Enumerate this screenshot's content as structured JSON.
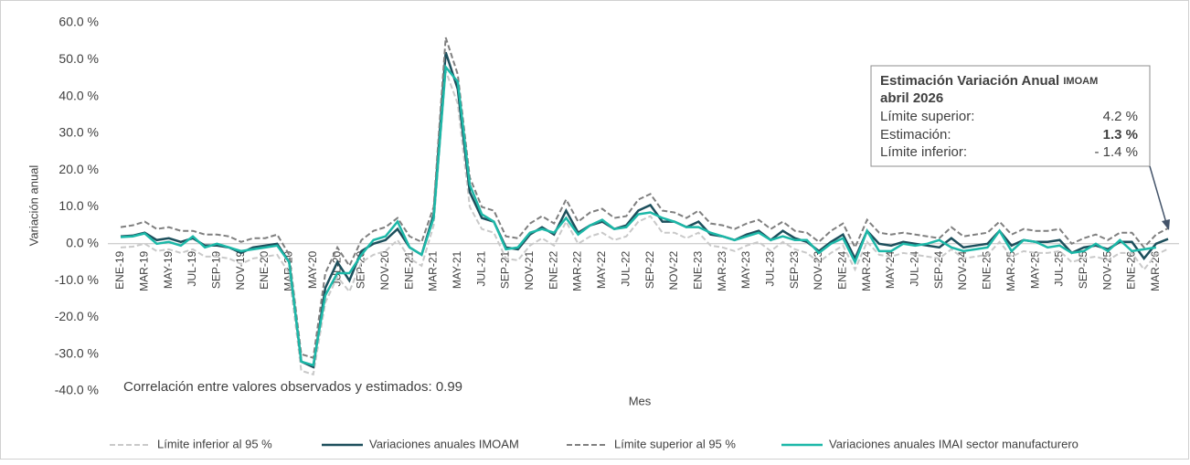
{
  "chart_data": {
    "type": "line",
    "y_label": "Variación anual",
    "x_label": "Mes",
    "ylim": [
      -40,
      60
    ],
    "yticks": [
      {
        "value": -40,
        "label": "-40.0 %"
      },
      {
        "value": -30,
        "label": "-30.0 %"
      },
      {
        "value": -20,
        "label": "-20.0 %"
      },
      {
        "value": -10,
        "label": "-10.0 %"
      },
      {
        "value": 0,
        "label": "0.0 %"
      },
      {
        "value": 10,
        "label": "10.0 %"
      },
      {
        "value": 20,
        "label": "20.0 %"
      },
      {
        "value": 30,
        "label": "30.0 %"
      },
      {
        "value": 40,
        "label": "40.0 %"
      },
      {
        "value": 50,
        "label": "50.0 %"
      },
      {
        "value": 60,
        "label": "60.0 %"
      }
    ],
    "categories": [
      "ENE-19",
      null,
      "MAR-19",
      null,
      "MAY-19",
      null,
      "JUL-19",
      null,
      "SEP-19",
      null,
      "NOV-19",
      null,
      "ENE-20",
      null,
      "MAR-20",
      null,
      "MAY-20",
      null,
      "JUL-20",
      null,
      "SEP-20",
      null,
      "NOV-20",
      null,
      "ENE-21",
      null,
      "MAR-21",
      null,
      "MAY-21",
      null,
      "JUL-21",
      null,
      "SEP-21",
      null,
      "NOV-21",
      null,
      "ENE-22",
      null,
      "MAR-22",
      null,
      "MAY-22",
      null,
      "JUL-22",
      null,
      "SEP-22",
      null,
      "NOV-22",
      null,
      "ENE-23",
      null,
      "MAR-23",
      null,
      "MAY-23",
      null,
      "JUL-23",
      null,
      "SEP-23",
      null,
      "NOV-23",
      null,
      "ENE-24",
      null,
      "MAR-24",
      null,
      "MAY-24",
      null,
      "JUL-24",
      null,
      "SEP-24",
      null,
      "NOV-24",
      null,
      "ENE-25",
      null,
      "MAR-25",
      null,
      "MAY-25",
      null,
      "JUL-25",
      null,
      "SEP-25",
      null,
      "NOV-25",
      null,
      "ENE-26",
      null,
      "MAR-26",
      null
    ],
    "series": [
      {
        "name": "Límite inferior al 95 %",
        "color": "#c9c9c9",
        "dashed": true,
        "values": [
          -1,
          -0.8,
          0,
          -2,
          -1.5,
          -2.5,
          -1.5,
          -3.5,
          -3.5,
          -4,
          -5.5,
          -4,
          -3.5,
          -3,
          -8,
          -34.5,
          -35.5,
          -16,
          -9,
          -13,
          -5,
          -3,
          -2,
          1,
          -4,
          -6,
          5,
          47,
          38,
          10,
          4,
          3,
          -4,
          -4.5,
          -0.5,
          1.5,
          -0.5,
          6,
          0,
          2,
          3,
          1,
          2,
          6,
          7.5,
          3,
          3,
          1.5,
          3,
          -0.5,
          -1,
          -2,
          -0.5,
          0.5,
          -2,
          0.5,
          -1.5,
          -2.5,
          -5,
          -2.5,
          -0.5,
          -7,
          0.5,
          -3,
          -3.5,
          -2.5,
          -3,
          -3.5,
          -4,
          -1.5,
          -4,
          -3.5,
          -3,
          0.5,
          -3.5,
          -2,
          -2.5,
          -2.5,
          -2,
          -5,
          -4,
          -3.5,
          -4.5,
          -2.5,
          -2.5,
          -7,
          -3,
          -1.4
        ]
      },
      {
        "name": "Variaciones anuales IMOAM",
        "color": "#1d4f5c",
        "dashed": false,
        "values": [
          2,
          2.2,
          3,
          1,
          1.5,
          0.5,
          1.5,
          -0.5,
          -0.5,
          -1,
          -2.5,
          -1,
          -0.5,
          0,
          -5,
          -32,
          -33.5,
          -12,
          -5,
          -10,
          -2,
          0,
          1,
          4,
          -1,
          -3,
          8,
          52,
          42,
          14,
          7,
          6,
          -1,
          -1.5,
          2.5,
          4.5,
          2.5,
          9,
          3,
          5,
          6,
          4,
          5,
          9,
          10.5,
          6,
          6,
          4.5,
          6,
          2.5,
          2,
          1,
          2.5,
          3.5,
          1,
          3.5,
          1.5,
          0.5,
          -2,
          0.5,
          2.5,
          -4,
          3.5,
          0,
          -0.5,
          0.5,
          0,
          -0.5,
          -1,
          1.5,
          -1,
          -0.5,
          0,
          3.5,
          -0.5,
          1,
          0.5,
          0.5,
          1,
          -2.5,
          -1,
          -0.5,
          -1.5,
          0.5,
          0.5,
          -4,
          0,
          1.3
        ]
      },
      {
        "name": "Límite superior al 95 %",
        "color": "#7f7f7f",
        "dashed": true,
        "values": [
          4.5,
          5,
          6,
          4,
          4.5,
          3.5,
          3.5,
          2.5,
          2.5,
          2,
          0.5,
          1.5,
          1.5,
          2.5,
          -3,
          -30,
          -31,
          -8,
          -1,
          -6,
          1,
          3.5,
          4.5,
          7,
          2,
          0.5,
          10,
          56,
          46,
          18,
          10,
          9,
          2,
          1.5,
          5.5,
          7.5,
          5.5,
          12,
          6,
          8.5,
          9.5,
          7,
          7.5,
          12,
          13.5,
          9,
          8.5,
          7,
          9,
          5.5,
          5,
          4,
          5.5,
          6.5,
          4,
          6,
          3.5,
          3,
          0.5,
          3.5,
          5.5,
          -1,
          6.5,
          3,
          2.5,
          3,
          2.5,
          2,
          1.5,
          4.5,
          2,
          2.5,
          3,
          6,
          2.5,
          4,
          3.5,
          3.5,
          4,
          0,
          1.5,
          2.5,
          1,
          3,
          3,
          -1,
          2.5,
          4.2
        ]
      },
      {
        "name": "Variaciones anuales IMAI sector manufacturero",
        "color": "#1cb8a8",
        "dashed": false,
        "values": [
          1.8,
          2,
          2.8,
          0,
          0.5,
          -0.5,
          2,
          -1,
          0,
          -1,
          -2,
          -1.5,
          -1,
          -0.5,
          -5,
          -32,
          -33,
          -14,
          -8,
          -8,
          -3,
          1,
          2,
          6,
          -1,
          -3,
          7,
          48,
          44,
          16,
          8,
          6,
          -1.5,
          -1,
          3,
          4,
          3,
          7,
          2.5,
          5,
          6.5,
          4,
          4.5,
          8,
          8.5,
          7,
          6,
          4.5,
          4.5,
          3,
          2,
          1,
          2,
          3,
          1,
          2,
          1,
          1,
          -2.5,
          0,
          1.5,
          -5,
          3.5,
          -2,
          -2,
          0,
          -0.5,
          0,
          1,
          -1,
          -2,
          -1.5,
          -1,
          3.5,
          -2,
          1,
          0.5,
          -1,
          -0.5,
          -2.5,
          -2,
          0,
          -2,
          1,
          -2,
          -1.5,
          -1,
          null
        ]
      }
    ],
    "correlation_note": "Correlación entre valores observados y estimados:  0.99",
    "annotation": {
      "title": "Estimación Variación Anual",
      "title_tag": "IMOAM",
      "subtitle": "abril 2026",
      "rows": [
        {
          "label": "Límite superior:",
          "value": "4.2 %"
        },
        {
          "label": "Estimación:",
          "value": "1.3 %"
        },
        {
          "label": "Límite inferior:",
          "value": "- 1.4 %"
        }
      ]
    }
  }
}
